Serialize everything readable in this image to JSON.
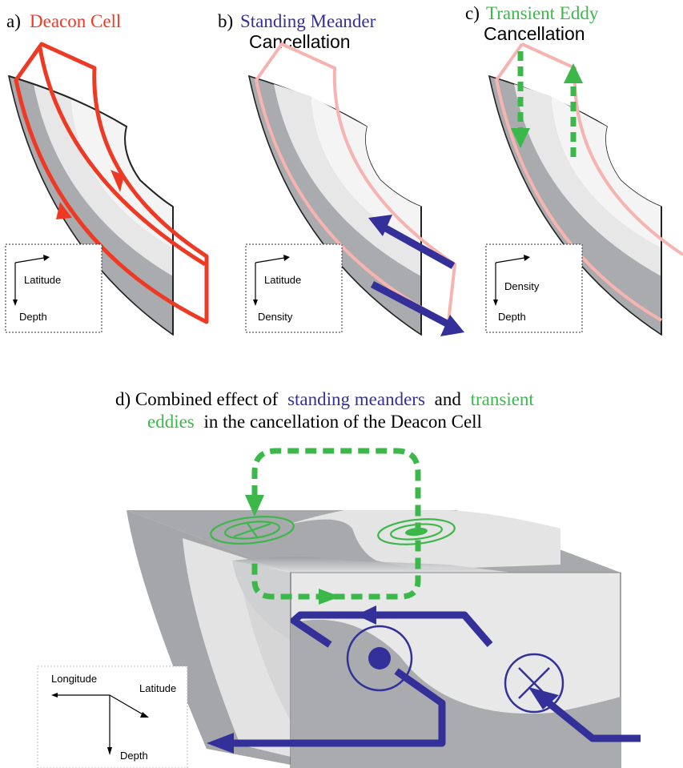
{
  "panels": {
    "a": {
      "prefix": "a)",
      "title": "Deacon Cell",
      "axis_right": "Latitude",
      "axis_down": "Depth"
    },
    "b": {
      "prefix": "b)",
      "title": "Standing Meander",
      "subtitle": "Cancellation",
      "axis_right": "Latitude",
      "axis_down": "Density"
    },
    "c": {
      "prefix": "c)",
      "title": "Transient Eddy",
      "subtitle": "Cancellation",
      "axis_right": "Density",
      "axis_down": "Depth"
    },
    "d": {
      "title_line1_a": "d) Combined effect of",
      "title_line1_b": "standing meanders",
      "title_line1_c": "and",
      "title_line1_d": "transient",
      "title_line2_a": "eddies",
      "title_line2_b": "in the cancellation of the Deacon Cell",
      "axis_left": "Longitude",
      "axis_diag": "Latitude",
      "axis_down": "Depth"
    }
  },
  "colors": {
    "deacon": "#ee3a24",
    "deacon_faint": "#f6b3b0",
    "meander": "#34309a",
    "eddy": "#3cb84a",
    "dark_layer": "#a9abae",
    "light_layer": "#e7e7e8"
  }
}
